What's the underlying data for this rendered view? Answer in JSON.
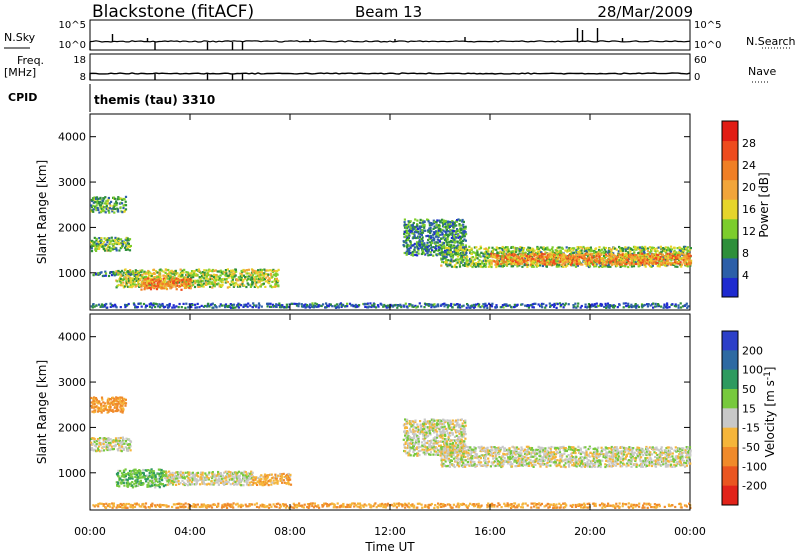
{
  "header": {
    "station": "Blackstone (fitACF)",
    "beam": "Beam 13",
    "date": "28/Mar/2009"
  },
  "strips": {
    "nsky_label": "N.Sky",
    "nsky_ticks": [
      "10^5",
      "10^0"
    ],
    "nsearch_label": "N.Search",
    "nsearch_ticks": [
      "10^5",
      "10^0"
    ],
    "freq_label": "Freq.",
    "freq_unit": "[MHz]",
    "freq_ticks": [
      "18",
      "8"
    ],
    "nave_label": "Nave",
    "nave_ticks": [
      "60",
      "0"
    ],
    "cpid_label": "CPID",
    "cpid_value": "themis (tau) 3310"
  },
  "colors": {
    "power": [
      "#1f2bd0",
      "#2c5fa8",
      "#2e8f3a",
      "#7ccd2c",
      "#e6d52a",
      "#f2a53a",
      "#f07f25",
      "#ee4b1e",
      "#e21c14"
    ],
    "velocity": [
      "#2c3fc8",
      "#2e6aa2",
      "#2e9a5f",
      "#77c93d",
      "#c8c8c8",
      "#f5b53a",
      "#f08a2a",
      "#ea5520",
      "#e2231a"
    ]
  },
  "chart_data": [
    {
      "type": "heatmap",
      "name": "power",
      "ylabel": "Slant Range [km]",
      "xlabel": "Time UT",
      "x_ticks": [
        "00:00",
        "04:00",
        "08:00",
        "12:00",
        "16:00",
        "20:00",
        "00:00"
      ],
      "x_range_hours": [
        0,
        24
      ],
      "y_ticks": [
        "1000",
        "2000",
        "3000",
        "4000"
      ],
      "ylim": [
        180,
        4500
      ],
      "colorbar_label": "Power [dB]",
      "colorbar_ticks": [
        "4",
        "8",
        "12",
        "16",
        "20",
        "24",
        "28"
      ],
      "clim": [
        0,
        32
      ],
      "regions": [
        {
          "t0": 0.0,
          "t1": 1.4,
          "r0": 2350,
          "r1": 2700,
          "level": 10
        },
        {
          "t0": 0.0,
          "t1": 1.6,
          "r0": 1500,
          "r1": 1800,
          "level": 12
        },
        {
          "t0": 0.0,
          "t1": 2.0,
          "r0": 950,
          "r1": 1050,
          "level": 6
        },
        {
          "t0": 1.0,
          "t1": 7.5,
          "r0": 700,
          "r1": 1100,
          "level": 14
        },
        {
          "t0": 2.0,
          "t1": 4.0,
          "r0": 650,
          "r1": 900,
          "level": 22
        },
        {
          "t0": 12.5,
          "t1": 15.0,
          "r0": 1400,
          "r1": 2200,
          "level": 8
        },
        {
          "t0": 14.0,
          "t1": 24.0,
          "r0": 1150,
          "r1": 1600,
          "level": 12
        },
        {
          "t0": 16.0,
          "t1": 24.0,
          "r0": 1200,
          "r1": 1450,
          "level": 22
        },
        {
          "t0": 0.0,
          "t1": 24.0,
          "r0": 250,
          "r1": 350,
          "level": 5
        }
      ]
    },
    {
      "type": "heatmap",
      "name": "velocity",
      "ylabel": "Slant Range [km]",
      "xlabel": "Time UT",
      "x_ticks": [
        "00:00",
        "04:00",
        "08:00",
        "12:00",
        "16:00",
        "20:00",
        "00:00"
      ],
      "x_range_hours": [
        0,
        24
      ],
      "y_ticks": [
        "1000",
        "2000",
        "3000",
        "4000"
      ],
      "ylim": [
        180,
        4500
      ],
      "colorbar_label": "Velocity [m s^-1]",
      "colorbar_ticks": [
        "200",
        "100",
        "50",
        "15",
        "-15",
        "-50",
        "-100",
        "-200"
      ],
      "clim": [
        -250,
        250
      ],
      "regions": [
        {
          "t0": 0.0,
          "t1": 1.4,
          "r0": 2350,
          "r1": 2700,
          "level": -60
        },
        {
          "t0": 0.0,
          "t1": 1.6,
          "r0": 1500,
          "r1": 1800,
          "level": 0
        },
        {
          "t0": 1.0,
          "t1": 3.0,
          "r0": 700,
          "r1": 1100,
          "level": 40
        },
        {
          "t0": 3.0,
          "t1": 6.5,
          "r0": 750,
          "r1": 1050,
          "level": 0
        },
        {
          "t0": 6.5,
          "t1": 8.0,
          "r0": 750,
          "r1": 1000,
          "level": -40
        },
        {
          "t0": 12.5,
          "t1": 15.0,
          "r0": 1400,
          "r1": 2200,
          "level": 0
        },
        {
          "t0": 14.0,
          "t1": 24.0,
          "r0": 1150,
          "r1": 1600,
          "level": 0
        },
        {
          "t0": 0.0,
          "t1": 24.0,
          "r0": 250,
          "r1": 350,
          "level": -50
        }
      ]
    }
  ]
}
